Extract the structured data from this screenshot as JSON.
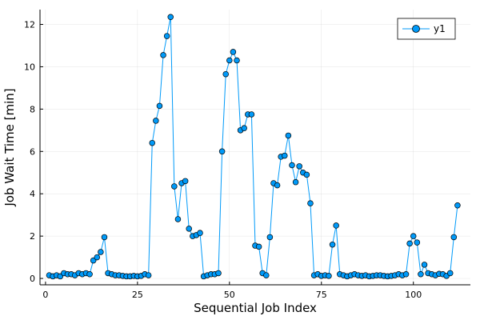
{
  "chart_data": {
    "type": "line",
    "title": "",
    "xlabel": "Sequential Job Index",
    "ylabel": "Job Wait Time [min]",
    "xlim": [
      -1.5,
      115.5
    ],
    "ylim": [
      -0.3,
      12.7
    ],
    "xticks": [
      0,
      25,
      50,
      75,
      100
    ],
    "yticks": [
      0,
      2,
      4,
      6,
      8,
      10,
      12
    ],
    "grid": true,
    "legend_position": "top-right",
    "series": [
      {
        "name": "y1",
        "color": "#009af9",
        "marker": "circle",
        "x": [
          1,
          2,
          3,
          4,
          5,
          6,
          7,
          8,
          9,
          10,
          11,
          12,
          13,
          14,
          15,
          16,
          17,
          18,
          19,
          20,
          21,
          22,
          23,
          24,
          25,
          26,
          27,
          28,
          29,
          30,
          31,
          32,
          33,
          34,
          35,
          36,
          37,
          38,
          39,
          40,
          41,
          42,
          43,
          44,
          45,
          46,
          47,
          48,
          49,
          50,
          51,
          52,
          53,
          54,
          55,
          56,
          57,
          58,
          59,
          60,
          61,
          62,
          63,
          64,
          65,
          66,
          67,
          68,
          69,
          70,
          71,
          72,
          73,
          74,
          75,
          76,
          77,
          78,
          79,
          80,
          81,
          82,
          83,
          84,
          85,
          86,
          87,
          88,
          89,
          90,
          91,
          92,
          93,
          94,
          95,
          96,
          97,
          98,
          99,
          100,
          101,
          102,
          103,
          104,
          105,
          106,
          107,
          108,
          109,
          110,
          111,
          112
        ],
        "y": [
          0.15,
          0.1,
          0.15,
          0.1,
          0.25,
          0.2,
          0.2,
          0.15,
          0.25,
          0.2,
          0.25,
          0.2,
          0.85,
          1.0,
          1.25,
          1.95,
          0.25,
          0.2,
          0.15,
          0.15,
          0.12,
          0.1,
          0.1,
          0.12,
          0.1,
          0.12,
          0.2,
          0.15,
          6.4,
          7.45,
          8.15,
          10.55,
          11.45,
          12.35,
          4.35,
          2.8,
          4.5,
          4.6,
          2.35,
          2.0,
          2.05,
          2.15,
          0.1,
          0.15,
          0.2,
          0.2,
          0.25,
          6.0,
          9.65,
          10.3,
          10.7,
          10.3,
          7.0,
          7.1,
          7.75,
          7.75,
          1.55,
          1.5,
          0.25,
          0.15,
          1.95,
          4.5,
          4.4,
          5.75,
          5.8,
          6.75,
          5.35,
          4.55,
          5.3,
          5.0,
          4.9,
          3.55,
          0.15,
          0.2,
          0.12,
          0.15,
          0.12,
          1.6,
          2.5,
          0.2,
          0.15,
          0.1,
          0.15,
          0.2,
          0.15,
          0.12,
          0.15,
          0.1,
          0.12,
          0.15,
          0.15,
          0.12,
          0.1,
          0.12,
          0.15,
          0.2,
          0.15,
          0.2,
          1.65,
          2.0,
          1.7,
          0.2,
          0.65,
          0.25,
          0.2,
          0.15,
          0.22,
          0.2,
          0.12,
          0.25,
          1.95,
          3.45
        ]
      }
    ]
  }
}
